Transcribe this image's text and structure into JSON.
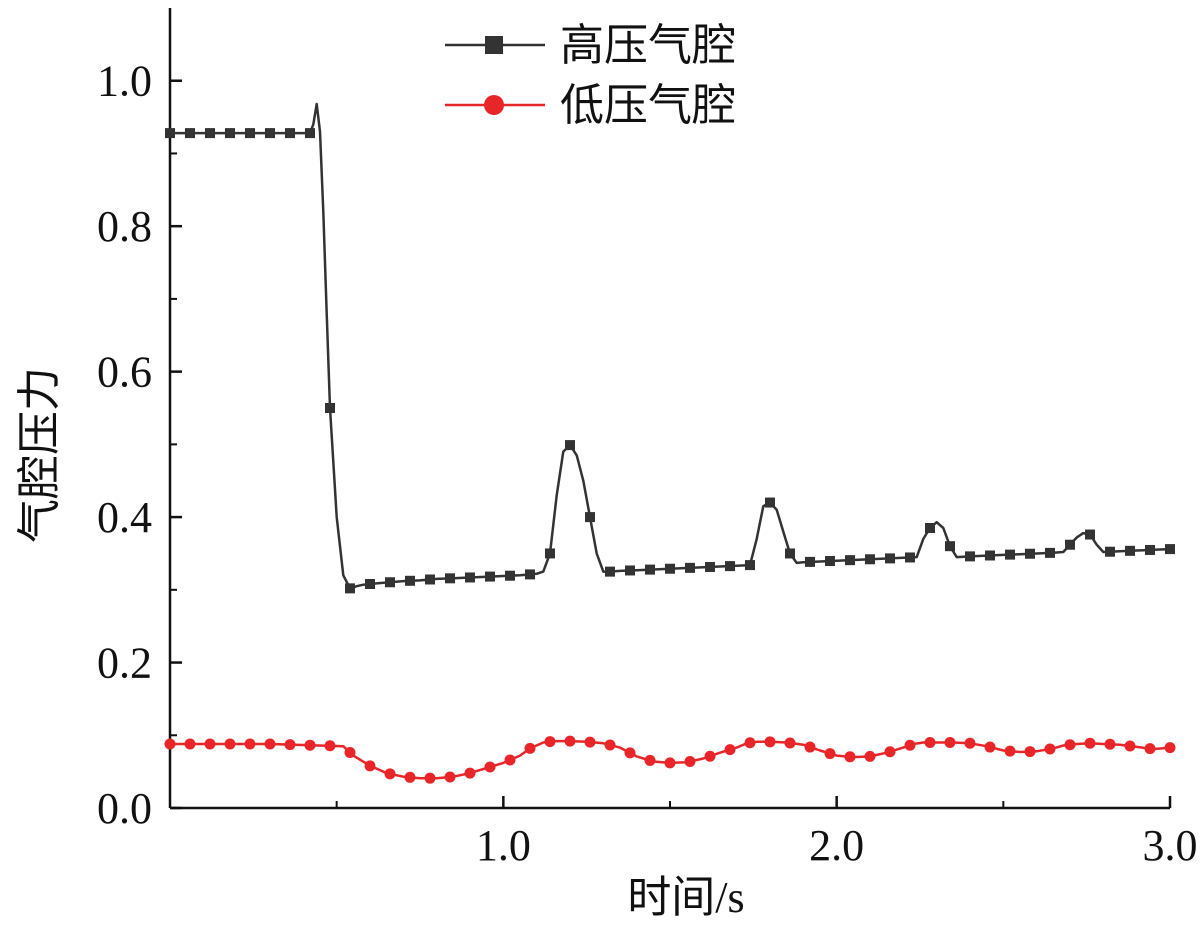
{
  "chart_data": {
    "type": "line",
    "xlabel": "时间/s",
    "ylabel": "气腔压力",
    "xlim": [
      0.0,
      3.0
    ],
    "ylim": [
      0.0,
      1.1
    ],
    "x_ticks": [
      1.0,
      2.0,
      3.0
    ],
    "x_tick_labels": [
      "1.0",
      "2.0",
      "3.0"
    ],
    "y_ticks": [
      0.0,
      0.2,
      0.4,
      0.6,
      0.8,
      1.0
    ],
    "y_tick_labels": [
      "0.0",
      "0.2",
      "0.4",
      "0.6",
      "0.8",
      "1.0"
    ],
    "grid": false,
    "legend_position": "top-center",
    "series": [
      {
        "name": "高压气腔",
        "color": "#333333",
        "marker": "square",
        "x": [
          0.0,
          0.03,
          0.06,
          0.09,
          0.12,
          0.15,
          0.18,
          0.21,
          0.24,
          0.27,
          0.3,
          0.33,
          0.36,
          0.39,
          0.42,
          0.43,
          0.44,
          0.45,
          0.46,
          0.47,
          0.48,
          0.5,
          0.52,
          0.54,
          0.56,
          0.58,
          0.6,
          0.65,
          0.7,
          0.75,
          0.8,
          0.85,
          0.9,
          0.95,
          1.0,
          1.05,
          1.1,
          1.12,
          1.14,
          1.16,
          1.18,
          1.2,
          1.22,
          1.24,
          1.26,
          1.28,
          1.3,
          1.32,
          1.35,
          1.4,
          1.45,
          1.5,
          1.55,
          1.6,
          1.65,
          1.7,
          1.74,
          1.76,
          1.78,
          1.8,
          1.82,
          1.84,
          1.86,
          1.88,
          1.9,
          1.95,
          2.0,
          2.05,
          2.1,
          2.15,
          2.2,
          2.24,
          2.26,
          2.28,
          2.3,
          2.32,
          2.34,
          2.36,
          2.4,
          2.45,
          2.5,
          2.55,
          2.6,
          2.65,
          2.68,
          2.7,
          2.72,
          2.74,
          2.76,
          2.78,
          2.8,
          2.85,
          2.9,
          2.95,
          3.0
        ],
        "y": [
          0.928,
          0.928,
          0.928,
          0.928,
          0.928,
          0.928,
          0.928,
          0.928,
          0.928,
          0.928,
          0.928,
          0.928,
          0.928,
          0.928,
          0.928,
          0.94,
          0.968,
          0.93,
          0.82,
          0.68,
          0.55,
          0.4,
          0.32,
          0.302,
          0.305,
          0.307,
          0.308,
          0.31,
          0.312,
          0.313,
          0.315,
          0.316,
          0.317,
          0.318,
          0.319,
          0.32,
          0.322,
          0.325,
          0.35,
          0.43,
          0.49,
          0.499,
          0.485,
          0.45,
          0.4,
          0.35,
          0.325,
          0.325,
          0.326,
          0.327,
          0.328,
          0.329,
          0.33,
          0.331,
          0.332,
          0.333,
          0.334,
          0.37,
          0.415,
          0.42,
          0.41,
          0.38,
          0.35,
          0.337,
          0.338,
          0.339,
          0.34,
          0.341,
          0.342,
          0.343,
          0.344,
          0.345,
          0.37,
          0.385,
          0.393,
          0.385,
          0.36,
          0.345,
          0.346,
          0.347,
          0.348,
          0.349,
          0.35,
          0.351,
          0.352,
          0.362,
          0.372,
          0.378,
          0.376,
          0.362,
          0.352,
          0.353,
          0.354,
          0.355,
          0.356
        ],
        "marker_x": [
          0.0,
          0.06,
          0.12,
          0.18,
          0.24,
          0.3,
          0.36,
          0.42,
          0.48,
          0.54,
          0.6,
          0.66,
          0.72,
          0.78,
          0.84,
          0.9,
          0.96,
          1.02,
          1.08,
          1.14,
          1.2,
          1.26,
          1.32,
          1.38,
          1.44,
          1.5,
          1.56,
          1.62,
          1.68,
          1.74,
          1.8,
          1.86,
          1.92,
          1.98,
          2.04,
          2.1,
          2.16,
          2.22,
          2.28,
          2.34,
          2.4,
          2.46,
          2.52,
          2.58,
          2.64,
          2.7,
          2.76,
          2.82,
          2.88,
          2.94,
          3.0
        ]
      },
      {
        "name": "低压气腔",
        "color": "#e8262a",
        "marker": "circle",
        "x": [
          0.0,
          0.3,
          0.52,
          0.55,
          0.6,
          0.65,
          0.7,
          0.75,
          0.8,
          0.85,
          0.9,
          0.95,
          1.0,
          1.05,
          1.08,
          1.12,
          1.15,
          1.2,
          1.25,
          1.3,
          1.35,
          1.4,
          1.45,
          1.5,
          1.55,
          1.6,
          1.65,
          1.7,
          1.73,
          1.76,
          1.8,
          1.85,
          1.9,
          1.95,
          2.0,
          2.05,
          2.1,
          2.15,
          2.2,
          2.23,
          2.26,
          2.3,
          2.35,
          2.4,
          2.45,
          2.5,
          2.55,
          2.6,
          2.65,
          2.68,
          2.72,
          2.76,
          2.8,
          2.85,
          2.9,
          2.95,
          3.0
        ],
        "y": [
          0.088,
          0.088,
          0.085,
          0.072,
          0.058,
          0.048,
          0.043,
          0.041,
          0.041,
          0.043,
          0.048,
          0.055,
          0.062,
          0.072,
          0.082,
          0.09,
          0.092,
          0.092,
          0.091,
          0.089,
          0.083,
          0.071,
          0.064,
          0.062,
          0.063,
          0.068,
          0.076,
          0.083,
          0.089,
          0.091,
          0.091,
          0.09,
          0.087,
          0.079,
          0.072,
          0.07,
          0.071,
          0.076,
          0.083,
          0.088,
          0.09,
          0.09,
          0.09,
          0.089,
          0.085,
          0.079,
          0.077,
          0.078,
          0.082,
          0.086,
          0.088,
          0.089,
          0.088,
          0.087,
          0.084,
          0.081,
          0.083
        ],
        "marker_x": [
          0.0,
          0.06,
          0.12,
          0.18,
          0.24,
          0.3,
          0.36,
          0.42,
          0.48,
          0.54,
          0.6,
          0.66,
          0.72,
          0.78,
          0.84,
          0.9,
          0.96,
          1.02,
          1.08,
          1.14,
          1.2,
          1.26,
          1.32,
          1.38,
          1.44,
          1.5,
          1.56,
          1.62,
          1.68,
          1.74,
          1.8,
          1.86,
          1.92,
          1.98,
          2.04,
          2.1,
          2.16,
          2.22,
          2.28,
          2.34,
          2.4,
          2.46,
          2.52,
          2.58,
          2.64,
          2.7,
          2.76,
          2.82,
          2.88,
          2.94,
          3.0
        ]
      }
    ]
  }
}
